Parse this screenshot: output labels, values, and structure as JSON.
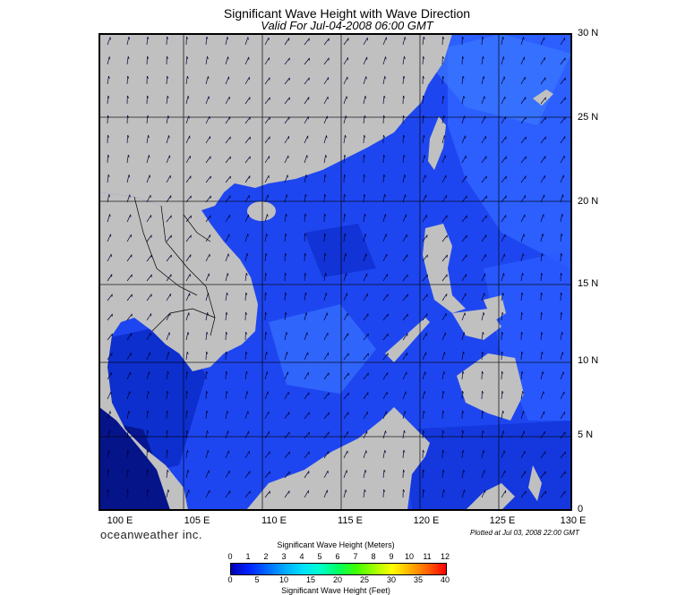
{
  "title": "Significant Wave Height with Wave Direction",
  "subtitle": "Valid For Jul-04-2008 06:00 GMT",
  "lat_labels": [
    "30 N",
    "25 N",
    "20 N",
    "15 N",
    "10 N",
    "5 N",
    "0"
  ],
  "lon_labels": [
    "100 E",
    "105 E",
    "110 E",
    "115 E",
    "120 E",
    "125 E",
    "130 E"
  ],
  "brand": "oceanweather inc.",
  "plotted": "Plotted at Jul 03, 2008 22:00 GMT",
  "legend": {
    "meters_title": "Significant Wave Height (Meters)",
    "feet_title": "Significant Wave Height (Feet)",
    "meters_ticks": [
      "0",
      "1",
      "2",
      "3",
      "4",
      "5",
      "6",
      "7",
      "8",
      "9",
      "10",
      "11",
      "12"
    ],
    "feet_ticks": [
      "0",
      "5",
      "10",
      "15",
      "20",
      "25",
      "30",
      "35",
      "40"
    ],
    "colors": [
      "#0000b4",
      "#0022ff",
      "#0066ff",
      "#00aaff",
      "#00e0ff",
      "#00ffc8",
      "#00ff60",
      "#40ff00",
      "#a0ff00",
      "#ffff00",
      "#ffb000",
      "#ff6000",
      "#ff0000"
    ]
  },
  "colors": {
    "land": "#c0c0c0",
    "sea_base": "#1e46f0",
    "arrow": "#000033"
  }
}
